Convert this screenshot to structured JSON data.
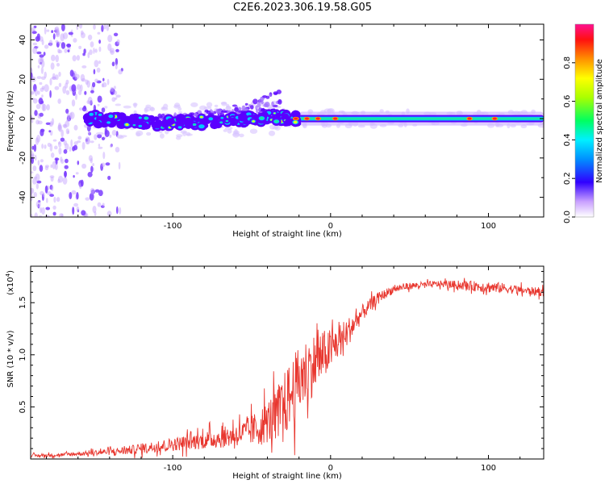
{
  "title": "C2E6.2023.306.19.58.G05",
  "colors": {
    "snr_line": "#e8372f",
    "ridge_low": "#5a00ff",
    "ridge_mid": "#19e6a0",
    "ridge_high": "#e6ff1a",
    "peak": "#ff2030",
    "noise": "#7b3dff"
  },
  "chart_data": [
    {
      "type": "heatmap",
      "xlabel": "Height of straight line (km)",
      "ylabel": "Frequency (Hz)",
      "xlim": [
        -190,
        135
      ],
      "ylim": [
        -50,
        48
      ],
      "x_ticks": [
        -100,
        0,
        100
      ],
      "x_tick_labels": [
        "-100",
        "0",
        "100"
      ],
      "y_ticks": [
        -40,
        -20,
        0,
        20,
        40
      ],
      "y_tick_labels": [
        "-40",
        "-20",
        "0",
        "20",
        "40"
      ],
      "colorbar": {
        "label": "Normalized spectral amplitude",
        "range": [
          0,
          1
        ],
        "ticks": [
          0.0,
          0.2,
          0.4,
          0.6,
          0.8
        ],
        "tick_labels": [
          "0.0",
          "0.2",
          "0.4",
          "0.6",
          "0.8"
        ]
      },
      "noise_region": [
        -190,
        -132
      ],
      "main_ridge": {
        "x": [
          -155,
          -130,
          -110,
          -90,
          -70,
          -50,
          -35,
          -25,
          -10,
          0,
          20,
          60,
          90,
          105,
          135
        ],
        "freq": [
          0,
          -1,
          -2,
          -2,
          -1,
          0,
          1,
          0,
          0,
          0,
          0,
          0,
          0,
          0,
          0
        ],
        "amplitude": [
          0.2,
          0.3,
          0.4,
          0.5,
          0.5,
          0.55,
          0.6,
          0.7,
          0.75,
          0.8,
          0.5,
          0.5,
          0.5,
          0.5,
          0.5
        ]
      },
      "upper_branch": {
        "x": [
          -110,
          -95,
          -80,
          -65,
          -50,
          -40,
          -32
        ],
        "freq": [
          0,
          1,
          3,
          5,
          8,
          12,
          18
        ]
      },
      "peaks": [
        {
          "x": -22,
          "freq": 0
        },
        {
          "x": -15,
          "freq": 0
        },
        {
          "x": -8,
          "freq": 0
        },
        {
          "x": 3,
          "freq": 0
        },
        {
          "x": 88,
          "freq": 0
        },
        {
          "x": 104,
          "freq": 0
        }
      ]
    },
    {
      "type": "line",
      "xlabel": "Height of straight line (km)",
      "ylabel": "SNR (10 * v/v)",
      "y_multiplier": "(x10",
      "y_multiplier_exp": "4",
      "y_multiplier_close": ")",
      "xlim": [
        -190,
        135
      ],
      "ylim": [
        0,
        1.85
      ],
      "x_ticks": [
        -100,
        0,
        100
      ],
      "x_tick_labels": [
        "-100",
        "0",
        "100"
      ],
      "y_ticks": [
        0.5,
        1.0,
        1.5
      ],
      "y_tick_labels": [
        "0.5",
        "1.0",
        "1.5"
      ],
      "series": [
        {
          "x": [
            -190,
            -170,
            -150,
            -130,
            -110,
            -90,
            -70,
            -55,
            -45,
            -35,
            -28,
            -22,
            -15,
            -8,
            0,
            10,
            20,
            30,
            40,
            50,
            60,
            70,
            80,
            90,
            100,
            110,
            120,
            135
          ],
          "mean": [
            0.03,
            0.04,
            0.06,
            0.08,
            0.12,
            0.16,
            0.2,
            0.25,
            0.3,
            0.42,
            0.55,
            0.7,
            0.85,
            0.95,
            1.05,
            1.2,
            1.4,
            1.55,
            1.63,
            1.66,
            1.67,
            1.68,
            1.67,
            1.66,
            1.65,
            1.64,
            1.62,
            1.6
          ],
          "spread": [
            0.02,
            0.02,
            0.03,
            0.05,
            0.07,
            0.09,
            0.12,
            0.15,
            0.22,
            0.3,
            0.4,
            0.42,
            0.4,
            0.35,
            0.25,
            0.18,
            0.1,
            0.06,
            0.05,
            0.04,
            0.04,
            0.04,
            0.05,
            0.06,
            0.07,
            0.06,
            0.05,
            0.05
          ]
        }
      ]
    }
  ]
}
